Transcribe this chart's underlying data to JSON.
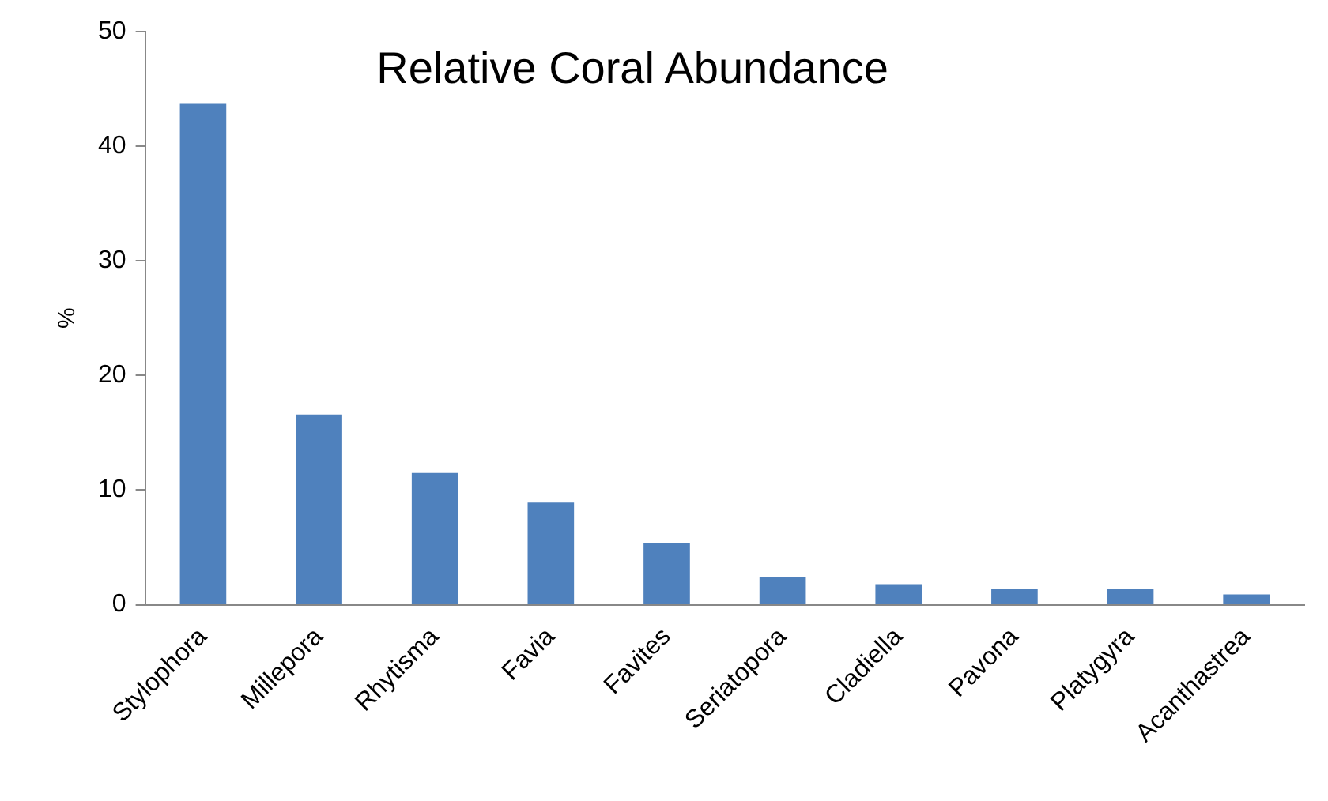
{
  "chart_data": {
    "type": "bar",
    "title": "Relative Coral Abundance",
    "ylabel": "%",
    "categories": [
      "Stylophora",
      "Millepora",
      "Rhytisma",
      "Favia",
      "Favites",
      "Seriatopora",
      "Cladiella",
      "Pavona",
      "Platygyra",
      "Acanthastrea"
    ],
    "values": [
      43.7,
      16.6,
      11.5,
      8.9,
      5.4,
      2.4,
      1.8,
      1.4,
      1.4,
      0.9
    ],
    "color": "#4f81bd",
    "ylim": [
      0,
      50
    ],
    "yticks": [
      0,
      10,
      20,
      30,
      40,
      50
    ],
    "grid": false,
    "legend": false
  }
}
